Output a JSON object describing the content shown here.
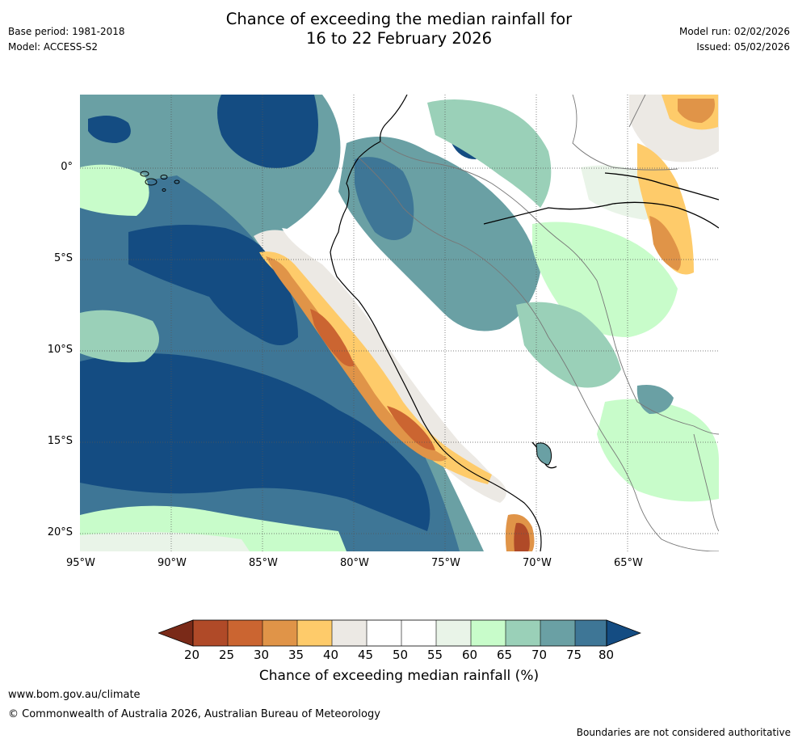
{
  "header": {
    "title_line1": "Chance of exceeding the median rainfall for",
    "title_line2": "16 to 22 February 2026",
    "base_period": "Base period: 1981-2018",
    "model": "Model: ACCESS-S2",
    "model_run": "Model run: 02/02/2026",
    "issued": "Issued: 05/02/2026"
  },
  "map": {
    "lat_ticks": [
      "0°",
      "5°S",
      "10°S",
      "15°S",
      "20°S"
    ],
    "lon_ticks": [
      "95°W",
      "90°W",
      "85°W",
      "80°W",
      "75°W",
      "70°W",
      "65°W"
    ]
  },
  "colorbar": {
    "title": "Chance of exceeding median rainfall (%)",
    "tick_labels": [
      "20",
      "25",
      "30",
      "35",
      "40",
      "45",
      "50",
      "55",
      "60",
      "65",
      "70",
      "75",
      "80"
    ],
    "colors": {
      "below_20": "#7a2a18",
      "20_25": "#b04a28",
      "25_30": "#cb6531",
      "30_35": "#e09448",
      "35_40": "#fecb6a",
      "40_45": "#ece9e4",
      "45_50": "#ffffff",
      "50_55": "#ffffff",
      "55_60": "#e9f4e8",
      "60_65": "#c8fcca",
      "65_70": "#9ad0b8",
      "70_75": "#6aa0a4",
      "75_80": "#3e7696",
      "above_80": "#144c82"
    }
  },
  "footer": {
    "url": "www.bom.gov.au/climate",
    "copyright": "© Commonwealth of Australia 2026, Australian Bureau of Meteorology",
    "disclaimer": "Boundaries are not considered authoritative"
  }
}
